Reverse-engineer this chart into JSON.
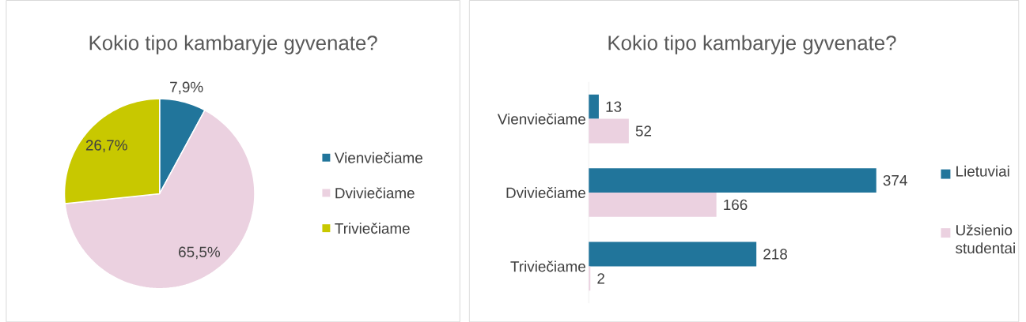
{
  "chart_data": [
    {
      "type": "pie",
      "title": "Kokio tipo kambaryje gyvenate?",
      "categories": [
        "Vienviečiame",
        "Dviviečiame",
        "Triviečiame"
      ],
      "values": [
        7.9,
        65.5,
        26.7
      ],
      "colors": [
        "#21759b",
        "#ebd1e0",
        "#c8c800"
      ],
      "value_labels": [
        "7,9%",
        "65,5%",
        "26,7%"
      ],
      "legend": "right"
    },
    {
      "type": "bar",
      "orientation": "horizontal",
      "title": "Kokio tipo kambaryje gyvenate?",
      "categories": [
        "Vienviečiame",
        "Dviviečiame",
        "Triviečiame"
      ],
      "series": [
        {
          "name": "Lietuviai",
          "color": "#21759b",
          "values": [
            13,
            374,
            218
          ]
        },
        {
          "name": "Užsienio studentai",
          "color": "#ebd1e0",
          "values": [
            52,
            166,
            2
          ]
        }
      ],
      "data_labels": true,
      "legend": "right"
    }
  ]
}
